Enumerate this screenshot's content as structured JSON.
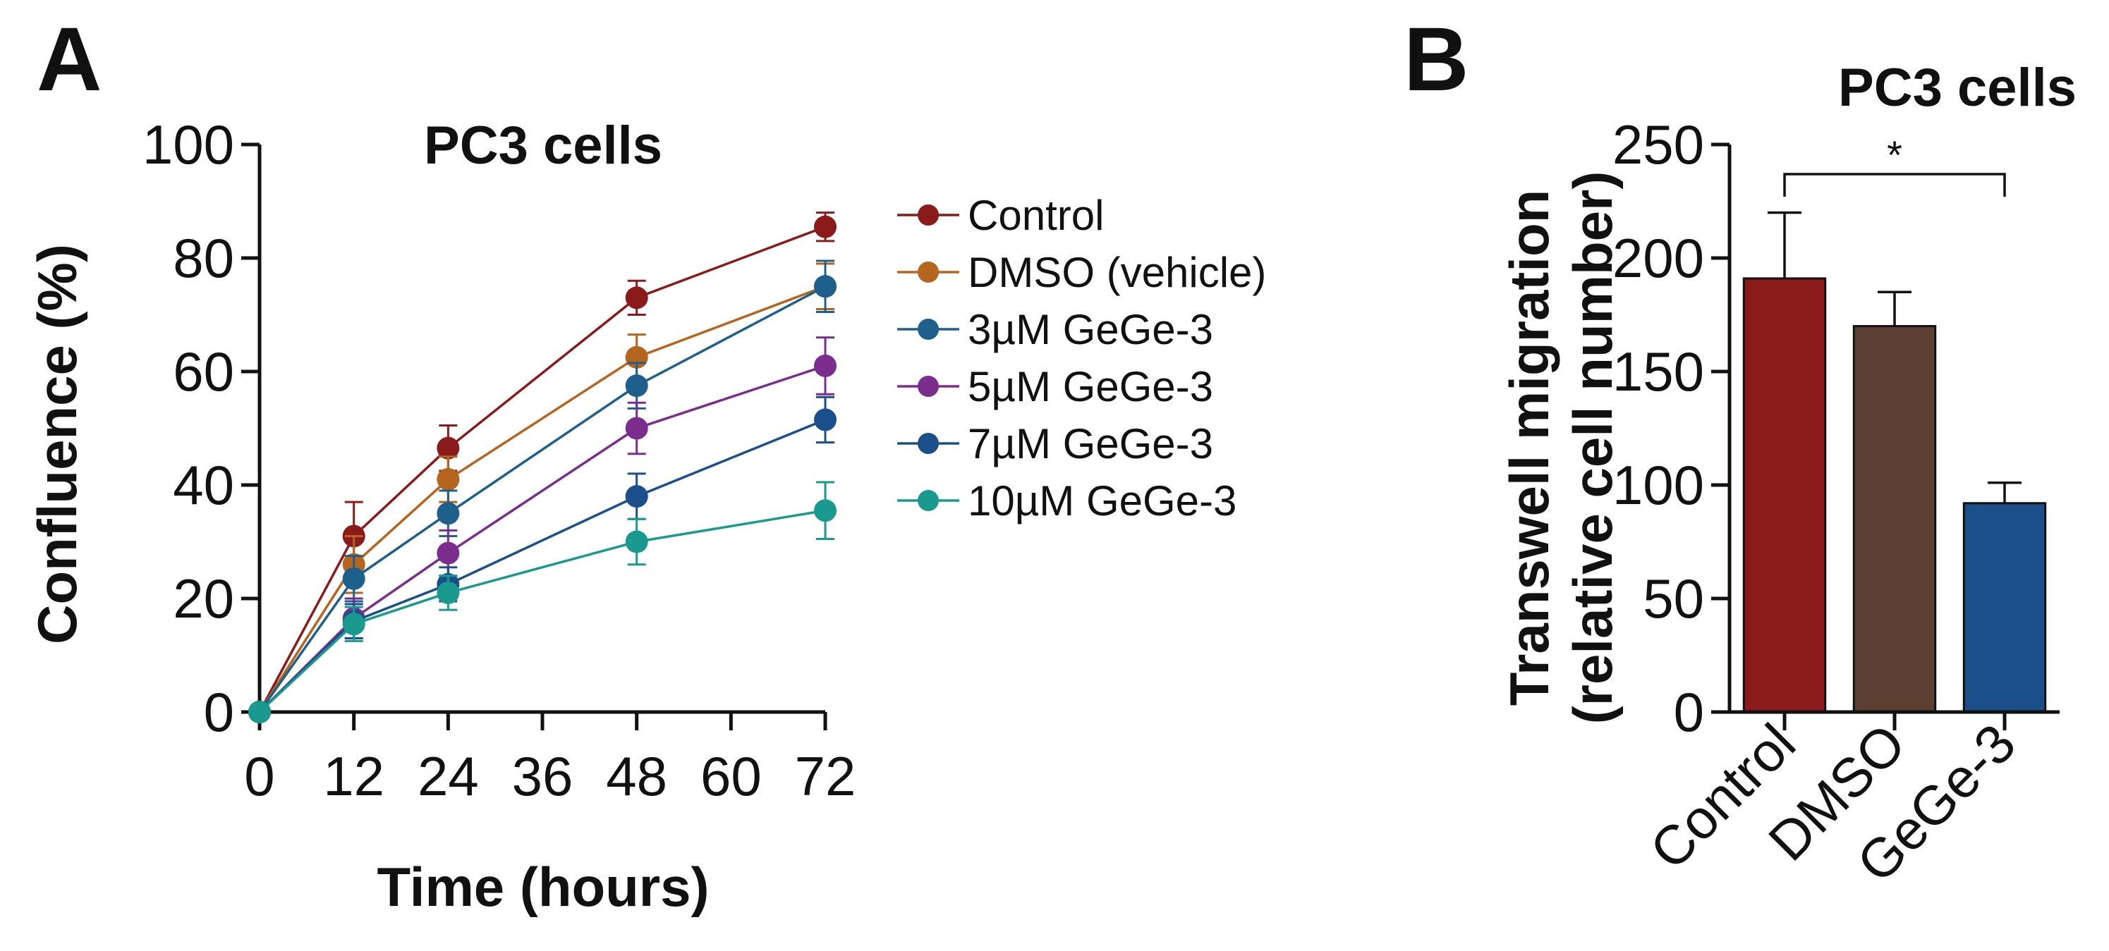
{
  "panels": {
    "a": {
      "letter": "A"
    },
    "b": {
      "letter": "B"
    }
  },
  "chart_data": [
    {
      "type": "line",
      "title": "PC3 cells",
      "xlabel": "Time (hours)",
      "ylabel": "Confluence (%)",
      "xlim": [
        0,
        72
      ],
      "ylim": [
        0,
        100
      ],
      "x_ticks": [
        0,
        12,
        24,
        36,
        48,
        60,
        72
      ],
      "y_ticks": [
        0,
        20,
        40,
        60,
        80,
        100
      ],
      "x": [
        0,
        12,
        24,
        48,
        72
      ],
      "legend_position": "right",
      "grid": false,
      "series": [
        {
          "name": "Control",
          "color": "#8b1a1a",
          "values": [
            0,
            31,
            46.5,
            73,
            85.5
          ],
          "errors": [
            0,
            6,
            4,
            3,
            2.5
          ]
        },
        {
          "name": "DMSO (vehicle)",
          "color": "#b5651d",
          "values": [
            0,
            26,
            41,
            62.5,
            75
          ],
          "errors": [
            0,
            5,
            4,
            4,
            4
          ]
        },
        {
          "name": "3µM GeGe-3",
          "color": "#1f5f8b",
          "values": [
            0,
            23.5,
            35,
            57.5,
            75
          ],
          "errors": [
            0,
            4,
            4,
            4,
            4.5
          ]
        },
        {
          "name": "5µM GeGe-3",
          "color": "#7b2d8e",
          "values": [
            0,
            16.5,
            28,
            50,
            61
          ],
          "errors": [
            0,
            3.5,
            4,
            4.5,
            5
          ]
        },
        {
          "name": "7µM GeGe-3",
          "color": "#1a4f8a",
          "values": [
            0,
            16,
            22.5,
            38,
            51.5
          ],
          "errors": [
            0,
            3,
            3,
            4,
            4
          ]
        },
        {
          "name": "10µM GeGe-3",
          "color": "#1a9a8f",
          "values": [
            0,
            15.5,
            21,
            30,
            35.5
          ],
          "errors": [
            0,
            3,
            3,
            4,
            5
          ]
        }
      ]
    },
    {
      "type": "bar",
      "title": "PC3 cells",
      "xlabel": "",
      "ylabel_line1": "Transwell migration",
      "ylabel_line2": "(relative cell number)",
      "ylim": [
        0,
        250
      ],
      "y_ticks": [
        0,
        50,
        100,
        150,
        200,
        250
      ],
      "categories": [
        "Control",
        "DMSO",
        "GeGe-3"
      ],
      "values": [
        191,
        170,
        92
      ],
      "errors": [
        29,
        15,
        9
      ],
      "colors": [
        "#8b1a1a",
        "#5c4033",
        "#1a4f8a"
      ],
      "significance": {
        "from": "Control",
        "to": "GeGe-3",
        "label": "*"
      }
    }
  ]
}
